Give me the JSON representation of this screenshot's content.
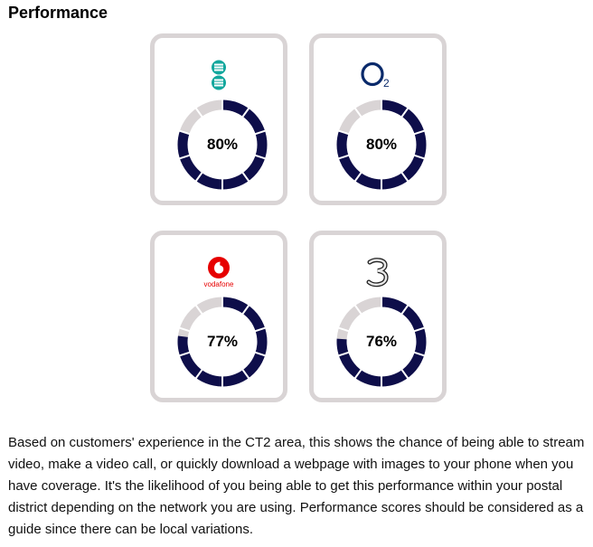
{
  "section": {
    "title": "Performance"
  },
  "networks": [
    {
      "name": "EE",
      "logo": "ee-logo",
      "percent": 80,
      "label": "80%"
    },
    {
      "name": "O2",
      "logo": "o2-logo",
      "percent": 80,
      "label": "80%"
    },
    {
      "name": "Vodafone",
      "logo": "vodafone-logo",
      "logo_text": "vodafone",
      "percent": 77,
      "label": "77%"
    },
    {
      "name": "Three",
      "logo": "three-logo",
      "percent": 76,
      "label": "76%"
    }
  ],
  "colors": {
    "filled": "#0e0e4a",
    "empty": "#d9d4d5",
    "card_border": "#d9d4d5",
    "ee": "#12a79d",
    "o2": "#0a2a6b",
    "vodafone": "#e60000"
  },
  "description": "Based on customers' experience in the CT2 area, this shows the chance of being able to stream video, make a video call, or quickly download a webpage with images to your phone when you have coverage. It's the likelihood of you being able to get this performance within your postal district depending on the network you are using. Performance scores should be considered as a guide since there can be local variations."
}
